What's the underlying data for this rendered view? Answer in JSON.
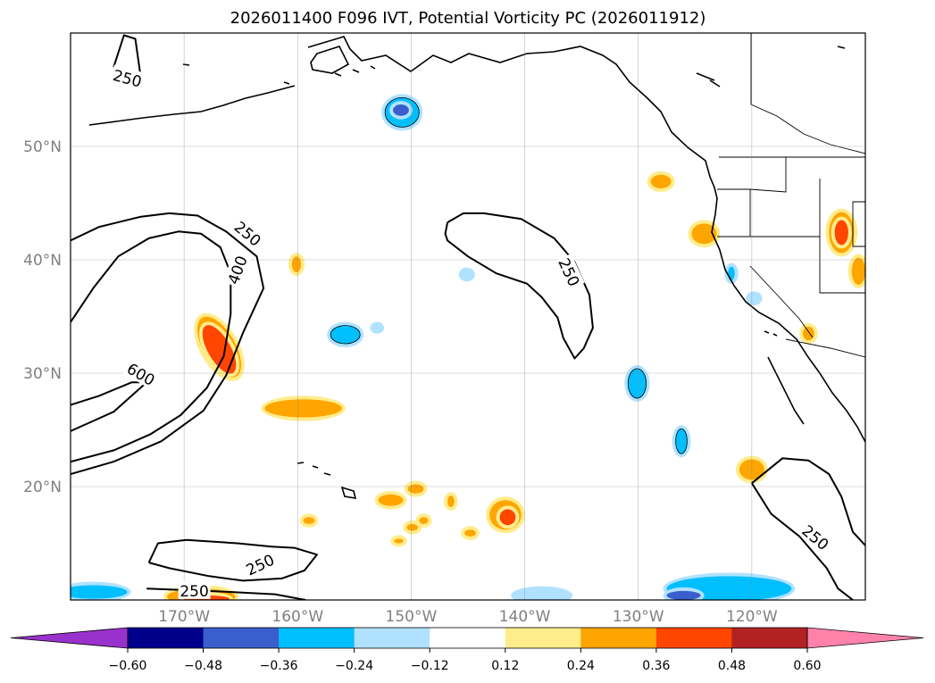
{
  "chart_data": {
    "type": "contour-map",
    "title": "2026011400 F096 IVT, Potential Vorticity PC (2026011912)",
    "projection": "PlateCarree",
    "extent": {
      "lon": [
        -180,
        -110
      ],
      "lat": [
        10,
        60
      ]
    },
    "x_ticks": [
      {
        "lon": -170,
        "label": "170°W"
      },
      {
        "lon": -160,
        "label": "160°W"
      },
      {
        "lon": -150,
        "label": "150°W"
      },
      {
        "lon": -140,
        "label": "140°W"
      },
      {
        "lon": -130,
        "label": "130°W"
      },
      {
        "lon": -120,
        "label": "120°W"
      }
    ],
    "y_ticks": [
      {
        "lat": 20,
        "label": "20°N"
      },
      {
        "lat": 30,
        "label": "30°N"
      },
      {
        "lat": 40,
        "label": "40°N"
      },
      {
        "lat": 50,
        "label": "50°N"
      }
    ],
    "gridlines": true,
    "colorbar": {
      "orientation": "horizontal",
      "extend": "both",
      "levels": [
        "−0.60",
        "−0.48",
        "−0.36",
        "−0.24",
        "−0.12",
        "0.12",
        "0.24",
        "0.36",
        "0.48",
        "0.60"
      ],
      "colors": [
        "#9932cc",
        "#00008b",
        "#3a5fcd",
        "#00bfff",
        "#b0e2ff",
        "#ffffff",
        "#ffec8b",
        "#ffa500",
        "#ff4500",
        "#b22222",
        "#ff82ab"
      ]
    },
    "ivt_contours": [
      {
        "level": "250",
        "points": [
          [
            -176.2,
            57.0
          ],
          [
            -175.3,
            59.8
          ],
          [
            -174.3,
            59.5
          ],
          [
            -173.8,
            56.0
          ],
          [
            -173.8,
            55.3
          ],
          [
            -176.2,
            57.0
          ]
        ]
      },
      {
        "level": "250",
        "points": [
          [
            -146.8,
            43.3
          ],
          [
            -145.4,
            44.1
          ],
          [
            -143.6,
            44.1
          ],
          [
            -140.3,
            43.6
          ],
          [
            -137.4,
            41.9
          ],
          [
            -135.6,
            39.8
          ],
          [
            -134.3,
            36.9
          ],
          [
            -134.0,
            34.0
          ],
          [
            -134.8,
            32.2
          ],
          [
            -135.6,
            31.3
          ],
          [
            -136.6,
            33.1
          ],
          [
            -137.1,
            34.9
          ],
          [
            -138.5,
            36.7
          ],
          [
            -139.8,
            37.9
          ],
          [
            -142.5,
            38.8
          ],
          [
            -145.0,
            40.3
          ],
          [
            -146.8,
            41.7
          ],
          [
            -147.0,
            42.3
          ],
          [
            -146.8,
            43.3
          ]
        ]
      },
      {
        "level": "250",
        "points": [
          [
            -180,
            41.7
          ],
          [
            -177.5,
            42.9
          ],
          [
            -173.8,
            43.8
          ],
          [
            -171.3,
            44.1
          ],
          [
            -168.8,
            43.9
          ],
          [
            -166.3,
            42.5
          ],
          [
            -163.6,
            40.3
          ],
          [
            -163.0,
            37.5
          ],
          [
            -164.8,
            33.6
          ],
          [
            -166.3,
            29.8
          ],
          [
            -168.3,
            26.7
          ],
          [
            -172.0,
            24.0
          ],
          [
            -176.2,
            22.2
          ],
          [
            -180,
            21.1
          ]
        ]
      },
      {
        "level": "400",
        "points": [
          [
            -180,
            34.5
          ],
          [
            -178.0,
            37.5
          ],
          [
            -175.8,
            40.3
          ],
          [
            -173.1,
            41.9
          ],
          [
            -170.5,
            42.5
          ],
          [
            -168.5,
            42.3
          ],
          [
            -166.8,
            41.1
          ],
          [
            -165.9,
            38.8
          ],
          [
            -165.9,
            35.2
          ],
          [
            -166.5,
            31.5
          ],
          [
            -168.0,
            28.7
          ],
          [
            -170.3,
            26.3
          ],
          [
            -173.0,
            24.6
          ],
          [
            -176.2,
            23.2
          ],
          [
            -180,
            22.2
          ]
        ]
      },
      {
        "level": "600",
        "points": [
          [
            -180,
            27.2
          ],
          [
            -177.5,
            28.0
          ],
          [
            -174.6,
            29.2
          ],
          [
            -173.3,
            29.2
          ],
          [
            -176.2,
            26.6
          ],
          [
            -178.2,
            25.7
          ],
          [
            -180,
            24.9
          ]
        ]
      },
      {
        "level": "250",
        "points": [
          [
            -120,
            20.3
          ],
          [
            -117.3,
            22.5
          ],
          [
            -115.0,
            22.3
          ],
          [
            -113.2,
            21.1
          ],
          [
            -112.1,
            19.1
          ],
          [
            -111.1,
            16.0
          ],
          [
            -110,
            14.8
          ]
        ]
      },
      {
        "level": "250",
        "points": [
          [
            -120,
            20.3
          ],
          [
            -118.3,
            17.6
          ],
          [
            -115.8,
            15.6
          ],
          [
            -113.4,
            12.8
          ],
          [
            -112.4,
            11.0
          ],
          [
            -111.1,
            10.0
          ]
        ]
      },
      {
        "level": "250",
        "points": [
          [
            -173.1,
            13.3
          ],
          [
            -172.3,
            15.0
          ],
          [
            -169.8,
            15.3
          ],
          [
            -165.3,
            15.0
          ],
          [
            -162.3,
            14.7
          ],
          [
            -160.3,
            14.6
          ],
          [
            -158.3,
            14.0
          ],
          [
            -159.4,
            12.6
          ],
          [
            -161.4,
            11.9
          ],
          [
            -164.8,
            11.7
          ],
          [
            -167.8,
            12.1
          ],
          [
            -171.3,
            12.8
          ],
          [
            -173.1,
            13.3
          ]
        ]
      },
      {
        "level": "250",
        "points": [
          [
            -173.3,
            11.0
          ],
          [
            -168.3,
            10.8
          ],
          [
            -165.8,
            10.7
          ],
          [
            -162.0,
            10.5
          ],
          [
            -159.3,
            10.0
          ]
        ]
      }
    ],
    "ivt_contour_labels": [
      {
        "label": "250",
        "lon": -175.0,
        "lat": 56.0,
        "angle": 15
      },
      {
        "label": "250",
        "lon": -164.4,
        "lat": 42.3,
        "angle": 40
      },
      {
        "label": "400",
        "lon": -165.3,
        "lat": 39.1,
        "angle": -70
      },
      {
        "label": "600",
        "lon": -173.8,
        "lat": 29.9,
        "angle": 30
      },
      {
        "label": "250",
        "lon": -136.1,
        "lat": 38.9,
        "angle": 65
      },
      {
        "label": "250",
        "lon": -114.4,
        "lat": 15.5,
        "angle": 40
      },
      {
        "label": "250",
        "lon": -163.3,
        "lat": 13.1,
        "angle": -25
      },
      {
        "label": "250",
        "lon": -169.1,
        "lat": 10.8,
        "angle": 0
      }
    ],
    "pv_anomalies": [
      {
        "lon": -150.8,
        "lat": 53.0,
        "rx": 1.5,
        "ry": 1.3,
        "value": -0.36,
        "outline": true
      },
      {
        "lon": -150.9,
        "lat": 53.2,
        "rx": 0.7,
        "ry": 0.5,
        "value": -0.48
      },
      {
        "lon": -155.8,
        "lat": 33.4,
        "rx": 1.3,
        "ry": 0.8,
        "value": -0.36,
        "outline": true
      },
      {
        "lon": -130.1,
        "lat": 29.1,
        "rx": 0.8,
        "ry": 1.3,
        "value": -0.36,
        "outline": true
      },
      {
        "lon": -126.2,
        "lat": 24.0,
        "rx": 0.5,
        "ry": 1.1,
        "value": -0.36,
        "outline": true
      },
      {
        "lon": -145.1,
        "lat": 38.7,
        "rx": 0.4,
        "ry": 0.3,
        "value": -0.24
      },
      {
        "lon": -153.0,
        "lat": 34.0,
        "rx": 0.3,
        "ry": 0.2,
        "value": -0.24
      },
      {
        "lon": -121.8,
        "lat": 38.8,
        "rx": 0.3,
        "ry": 0.6,
        "value": -0.36
      },
      {
        "lon": -119.8,
        "lat": 36.6,
        "rx": 0.4,
        "ry": 0.3,
        "value": -0.24
      },
      {
        "lon": -166.9,
        "lat": 32.3,
        "rx": 1.4,
        "ry": 3.0,
        "value": 0.24,
        "angle": -30
      },
      {
        "lon": -166.9,
        "lat": 32.1,
        "rx": 1.0,
        "ry": 2.4,
        "value": 0.36,
        "angle": -30
      },
      {
        "lon": -159.5,
        "lat": 26.9,
        "rx": 3.4,
        "ry": 0.8,
        "value": 0.24
      },
      {
        "lon": -160.1,
        "lat": 39.6,
        "rx": 0.4,
        "ry": 0.7,
        "value": 0.24
      },
      {
        "lon": -151.8,
        "lat": 18.8,
        "rx": 1.1,
        "ry": 0.5,
        "value": 0.24
      },
      {
        "lon": -149.6,
        "lat": 19.8,
        "rx": 0.7,
        "ry": 0.4,
        "value": 0.24
      },
      {
        "lon": -149.9,
        "lat": 16.4,
        "rx": 0.5,
        "ry": 0.3,
        "value": 0.24
      },
      {
        "lon": -148.9,
        "lat": 17.0,
        "rx": 0.4,
        "ry": 0.3,
        "value": 0.24
      },
      {
        "lon": -151.1,
        "lat": 15.2,
        "rx": 0.4,
        "ry": 0.2,
        "value": 0.24
      },
      {
        "lon": -146.5,
        "lat": 18.7,
        "rx": 0.3,
        "ry": 0.5,
        "value": 0.24
      },
      {
        "lon": -144.8,
        "lat": 15.9,
        "rx": 0.5,
        "ry": 0.3,
        "value": 0.24
      },
      {
        "lon": -159.0,
        "lat": 17.0,
        "rx": 0.5,
        "ry": 0.3,
        "value": 0.24
      },
      {
        "lon": -141.7,
        "lat": 17.5,
        "rx": 1.4,
        "ry": 1.3,
        "value": 0.24
      },
      {
        "lon": -141.5,
        "lat": 17.3,
        "rx": 0.7,
        "ry": 0.7,
        "value": 0.36
      },
      {
        "lon": -128.0,
        "lat": 46.9,
        "rx": 0.9,
        "ry": 0.6,
        "value": 0.24
      },
      {
        "lon": -124.2,
        "lat": 42.3,
        "rx": 1.1,
        "ry": 0.9,
        "value": 0.24
      },
      {
        "lon": -120.0,
        "lat": 21.5,
        "rx": 1.1,
        "ry": 0.9,
        "value": 0.24
      },
      {
        "lon": -115.0,
        "lat": 33.5,
        "rx": 0.5,
        "ry": 0.6,
        "value": 0.24
      },
      {
        "lon": -112.1,
        "lat": 42.4,
        "rx": 1.1,
        "ry": 1.8,
        "value": 0.24
      },
      {
        "lon": -112.1,
        "lat": 42.4,
        "rx": 0.6,
        "ry": 1.1,
        "value": 0.36
      },
      {
        "lon": -110.6,
        "lat": 39.0,
        "rx": 0.6,
        "ry": 1.2,
        "value": 0.24
      },
      {
        "lon": -168.5,
        "lat": 10.3,
        "rx": 3.0,
        "ry": 0.7,
        "value": 0.24
      },
      {
        "lon": -168.0,
        "lat": 10.1,
        "rx": 2.0,
        "ry": 0.3,
        "value": 0.36
      },
      {
        "lon": -178.0,
        "lat": 10.7,
        "rx": 3.0,
        "ry": 0.6,
        "value": -0.36
      },
      {
        "lon": -122.0,
        "lat": 11.0,
        "rx": 5.5,
        "ry": 1.1,
        "value": -0.36
      },
      {
        "lon": -126.0,
        "lat": 10.4,
        "rx": 1.5,
        "ry": 0.4,
        "value": -0.48
      },
      {
        "lon": -138.5,
        "lat": 10.4,
        "rx": 2.4,
        "ry": 0.5,
        "value": -0.24
      }
    ]
  }
}
